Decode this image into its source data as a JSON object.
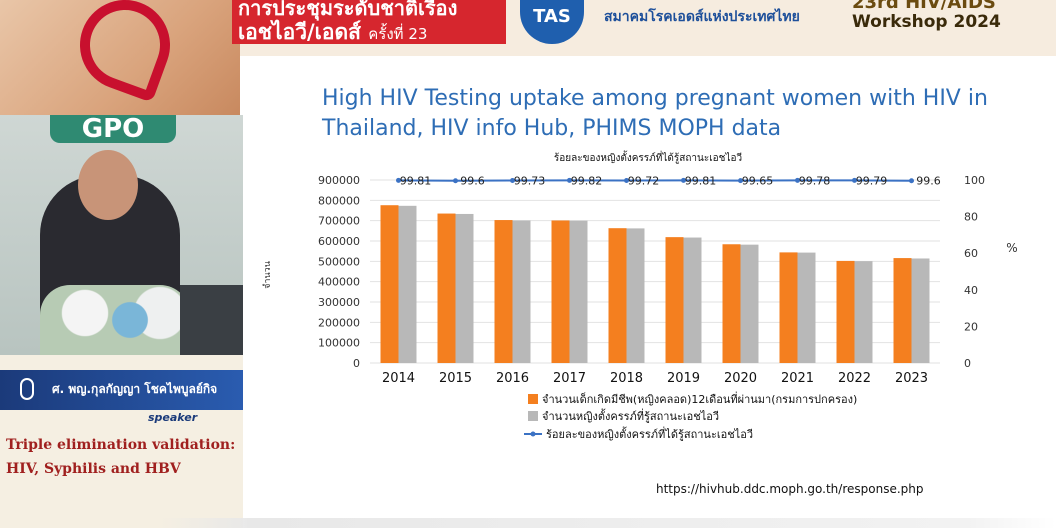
{
  "banner": {
    "line1": "การประชุมระดับชาติเรื่อง",
    "line2": "เอชไอวี/เอดส์",
    "line2_suffix": "ครั้งที่ 23",
    "logo_text": "TAS",
    "association": "สมาคมโรคเอดส์แห่งประเทศไทย",
    "workshop_top": "23rd HIV/AIDS",
    "workshop": "Workshop 2024"
  },
  "speaker": {
    "backdrop_sign": "GPO",
    "name": "ศ. พญ.กุลกัญญา โชคไพบูลย์กิจ",
    "role": "speaker",
    "talk_title": "Triple elimination validation: HIV, Syphilis and HBV"
  },
  "slide": {
    "title": "High HIV Testing uptake among pregnant women with HIV in Thailand, HIV info Hub, PHIMS MOPH data",
    "source": "https://hivhub.ddc.moph.go.th/response.php"
  },
  "chart_data": {
    "type": "bar",
    "subtitle": "ร้อยละของหญิงตั้งครรภ์ที่ได้รู้สถานะเอชไอวี",
    "ylabel_left": "จำนวน",
    "ylabel_right": "%",
    "categories": [
      "2014",
      "2015",
      "2016",
      "2017",
      "2018",
      "2019",
      "2020",
      "2021",
      "2022",
      "2023"
    ],
    "ylim_left": [
      0,
      900000
    ],
    "yticks_left": [
      "0",
      "100000",
      "200000",
      "300000",
      "400000",
      "500000",
      "600000",
      "700000",
      "800000",
      "900000"
    ],
    "ylim_right": [
      0,
      100
    ],
    "yticks_right": [
      "0",
      "20",
      "40",
      "60",
      "80",
      "100"
    ],
    "series": [
      {
        "name": "จำนวนเด็กเกิดมีชีพ(หญิงคลอด)12เดือนที่ผ่านมา(กรมการปกครอง)",
        "kind": "bar",
        "color": "#f47f1f",
        "values": [
          776000,
          735000,
          703000,
          701000,
          663000,
          619000,
          584000,
          544000,
          502000,
          516000
        ]
      },
      {
        "name": "จำนวนหญิงตั้งครรภ์ที่รู้สถานะเอชไอวี",
        "kind": "bar",
        "color": "#b8b8b8",
        "values": [
          773000,
          733000,
          701000,
          700000,
          662000,
          617000,
          582000,
          543000,
          501000,
          514000
        ]
      },
      {
        "name": "ร้อยละของหญิงตั้งครรภ์ที่ได้รู้สถานะเอชไอวี",
        "kind": "line",
        "axis": "right",
        "color": "#3b72c4",
        "values": [
          99.81,
          99.6,
          99.73,
          99.82,
          99.72,
          99.81,
          99.65,
          99.78,
          99.79,
          99.6
        ],
        "labels": [
          "99.81",
          "99.6",
          "99.73",
          "99.82",
          "99.72",
          "99.81",
          "99.65",
          "99.78",
          "99.79",
          "99.6"
        ]
      }
    ],
    "grid": true,
    "legend": "bottom"
  }
}
